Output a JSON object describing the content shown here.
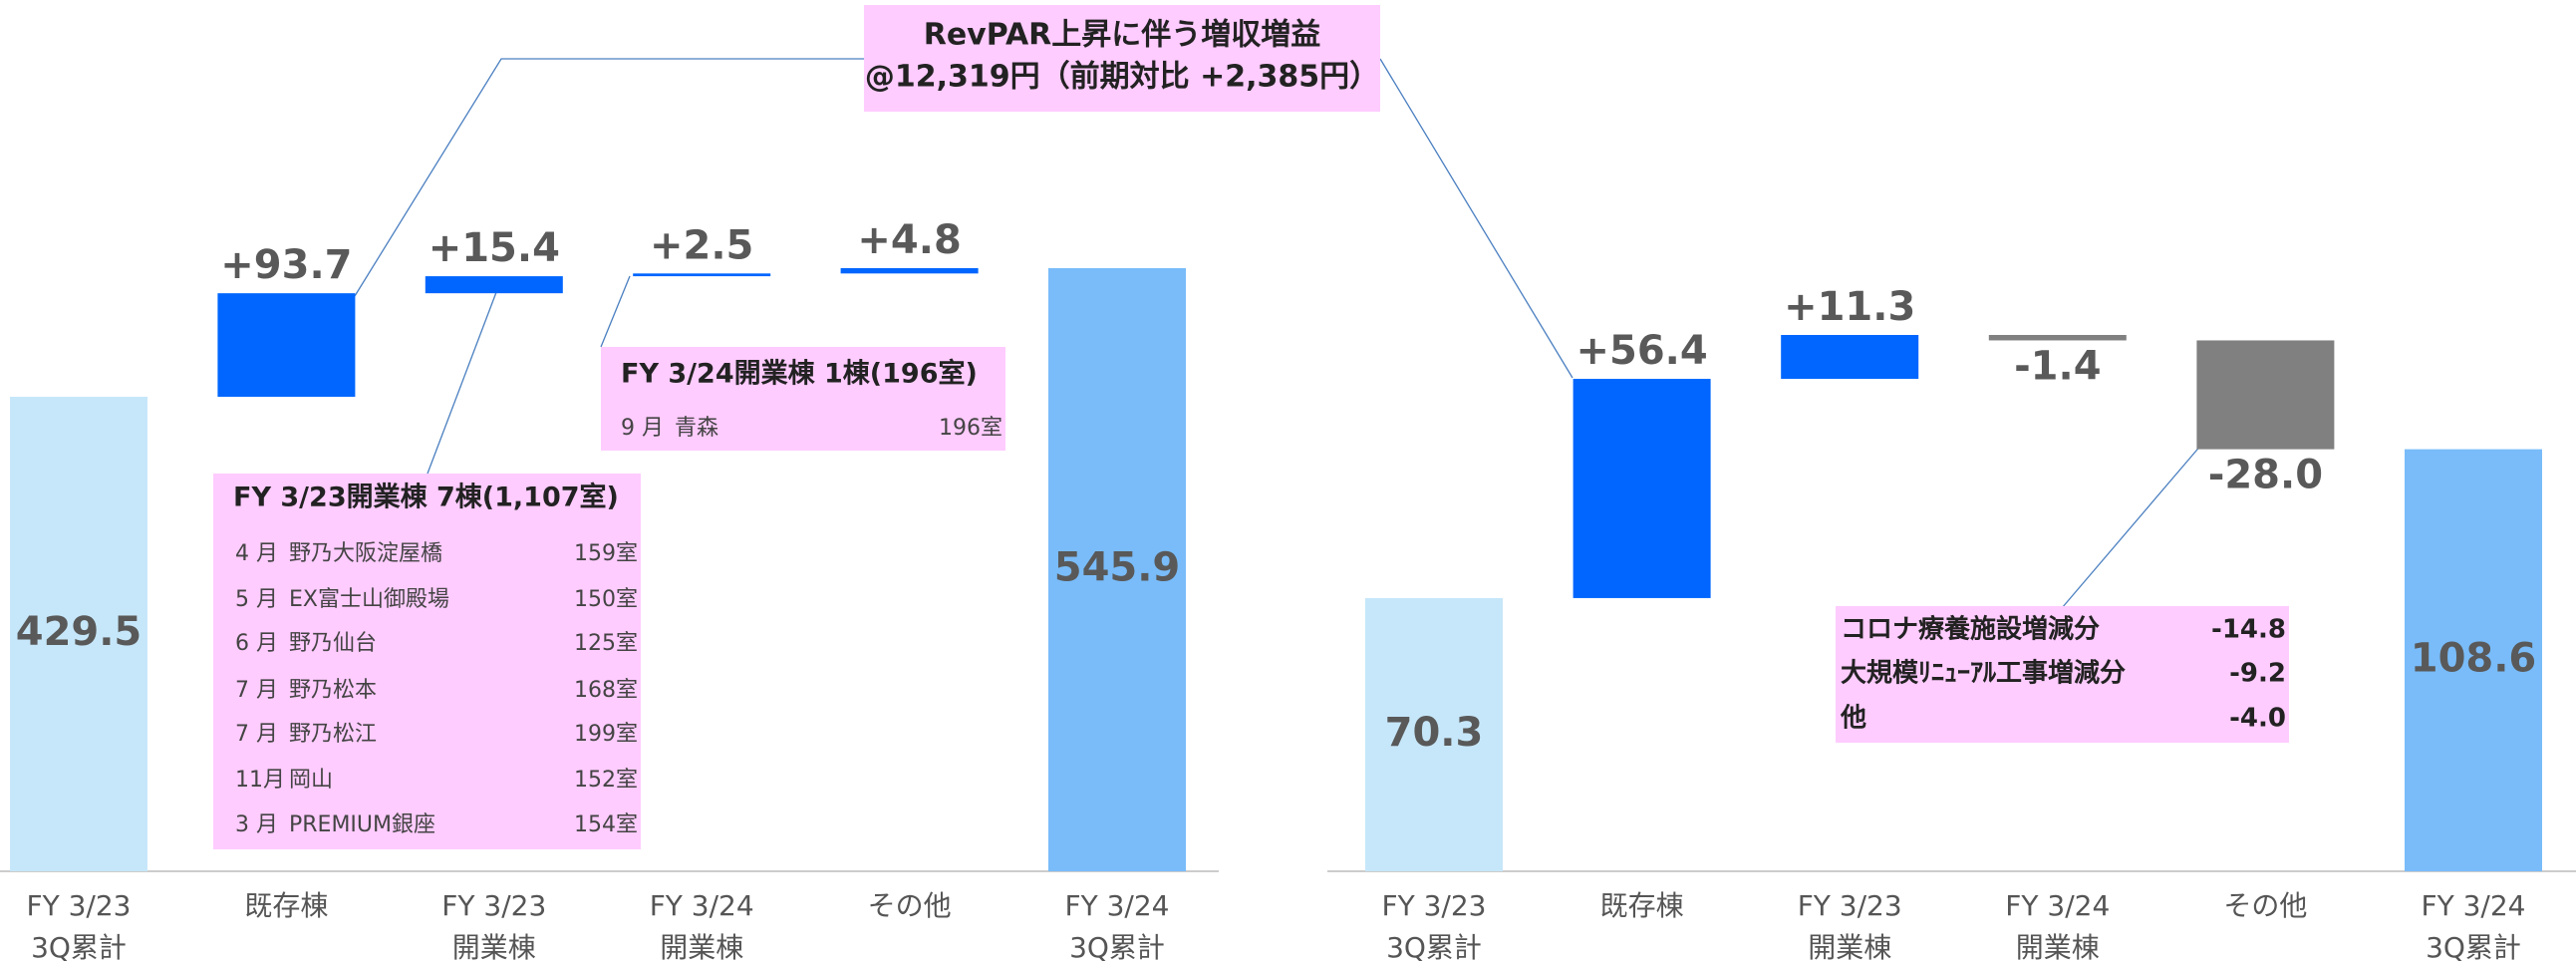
{
  "chart_data": [
    {
      "type": "waterfall",
      "categories": [
        "FY 3/23\n3Q累計",
        "既存棟",
        "FY 3/23\n開業棟",
        "FY 3/24\n開業棟",
        "その他",
        "FY 3/24\n3Q累計"
      ],
      "values": [
        429.5,
        93.7,
        15.4,
        2.5,
        4.8,
        545.9
      ],
      "value_labels": [
        "429.5",
        "+93.7",
        "+15.4",
        "+2.5",
        "+4.8",
        "545.9"
      ],
      "colors": [
        "#c6e7f9",
        "#0066ff",
        "#0066ff",
        "#0066ff",
        "#0066ff",
        "#79bcf9"
      ]
    },
    {
      "type": "waterfall",
      "categories": [
        "FY 3/23\n3Q累計",
        "既存棟",
        "FY 3/23\n開業棟",
        "FY 3/24\n開業棟",
        "その他",
        "FY 3/24\n3Q累計"
      ],
      "values": [
        70.3,
        56.4,
        11.3,
        -1.4,
        -28.0,
        108.6
      ],
      "value_labels": [
        "70.3",
        "+56.4",
        "+11.3",
        "-1.4",
        "-28.0",
        "108.6"
      ],
      "colors": [
        "#c6e7f9",
        "#0066ff",
        "#0066ff",
        "#808080",
        "#808080",
        "#79bcf9"
      ]
    }
  ],
  "top_note": [
    "RevPAR上昇に伴う増収増益",
    "@12,319円（前期対比 +2,385円）"
  ],
  "box_fy323": {
    "title": "FY 3/23開業棟  7棟(1,107室)",
    "rows": [
      [
        "4 月",
        "野乃大阪淀屋橋",
        "159室"
      ],
      [
        "5 月",
        "EX富士山御殿場",
        "150室"
      ],
      [
        "6 月",
        "野乃仙台",
        "125室"
      ],
      [
        "7 月",
        "野乃松本",
        "168室"
      ],
      [
        "7 月",
        "野乃松江",
        "199室"
      ],
      [
        "11月",
        "岡山",
        "152室"
      ],
      [
        "3 月",
        "PREMIUM銀座",
        "154室"
      ]
    ]
  },
  "box_fy324": {
    "title": "FY 3/24開業棟  1棟(196室)",
    "rows": [
      [
        "9 月",
        "青森",
        "196室"
      ]
    ]
  },
  "box_right": {
    "rows": [
      [
        "コロナ療養施設増減分",
        "-14.8"
      ],
      [
        "大規模ﾘﾆｭｰｱﾙ工事増減分",
        "-9.2"
      ],
      [
        "他",
        "-4.0"
      ]
    ]
  }
}
